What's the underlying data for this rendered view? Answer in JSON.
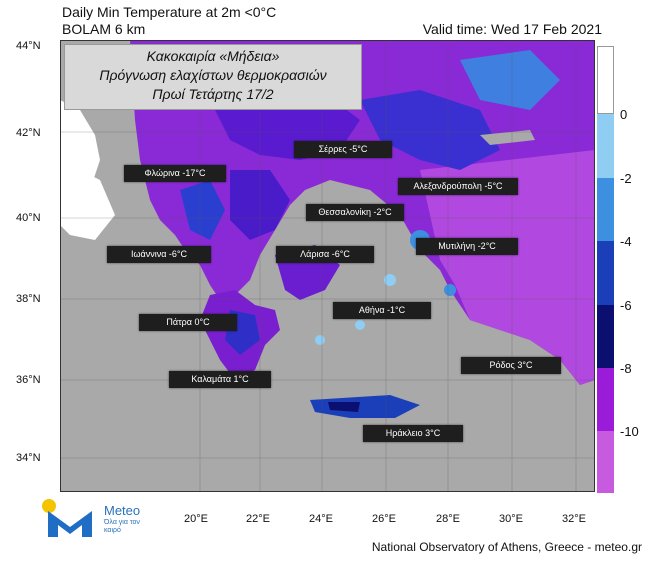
{
  "header": {
    "title_line1": "Daily Min Temperature at 2m <0°C",
    "title_line2": "BOLAM 6 km",
    "valid_time": "Valid time: Wed 17 Feb 2021"
  },
  "info_box": {
    "line1": "Κακοκαιρία «Μήδεια»",
    "line2": "Πρόγνωση ελαχίστων θερμοκρασιών",
    "line3": "Πρωί Τετάρτης 17/2"
  },
  "axes": {
    "latitudes": [
      "44°N",
      "42°N",
      "40°N",
      "38°N",
      "36°N",
      "34°N"
    ],
    "longitudes": [
      "20°E",
      "22°E",
      "24°E",
      "26°E",
      "28°E",
      "30°E",
      "32°E"
    ]
  },
  "cities": [
    {
      "name": "Φλώρινα -17°C"
    },
    {
      "name": "Σέρρες -5°C"
    },
    {
      "name": "Αλεξανδρούπολη -5°C"
    },
    {
      "name": "Θεσσαλονίκη -2°C"
    },
    {
      "name": "Ιωάννινα -6°C"
    },
    {
      "name": "Λάρισα -6°C"
    },
    {
      "name": "Μυτιλήνη -2°C"
    },
    {
      "name": "Αθήνα -1°C"
    },
    {
      "name": "Πάτρα 0°C"
    },
    {
      "name": "Καλαμάτα 1°C"
    },
    {
      "name": "Ρόδος 3°C"
    },
    {
      "name": "Ηράκλειο 3°C"
    }
  ],
  "colorbar": {
    "labels": [
      "0",
      "-2",
      "-4",
      "-6",
      "-8",
      "-10"
    ],
    "colors": [
      "#ffffff",
      "#8fcdf2",
      "#3d8fe0",
      "#1a3fb8",
      "#0b0f70",
      "#9a1bd8",
      "#c85ae0"
    ]
  },
  "logo": {
    "name": "Meteo",
    "tagline": "Όλα για τον καιρό"
  },
  "footer": "National Observatory of Athens, Greece - meteo.gr"
}
